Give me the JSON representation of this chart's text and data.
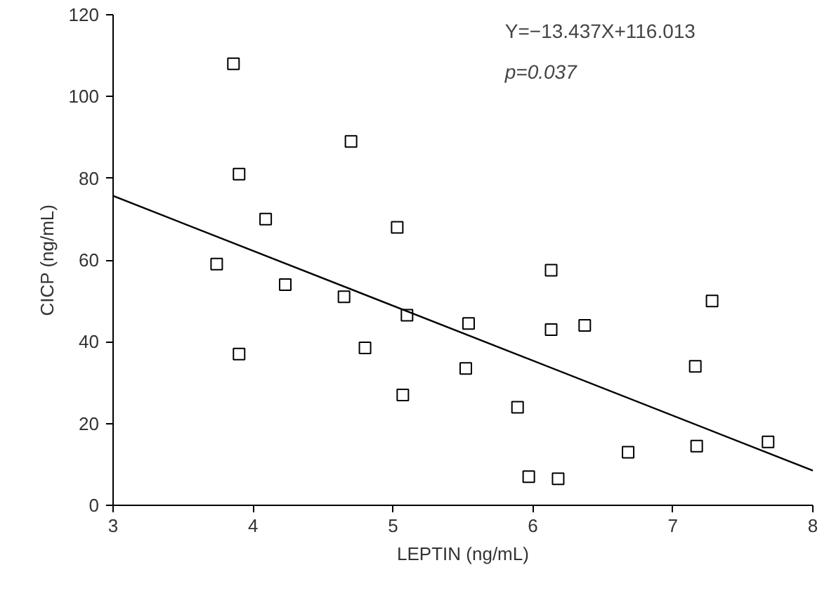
{
  "chart_data": {
    "type": "scatter",
    "xlabel": "LEPTIN (ng/mL)",
    "ylabel": "CICP (ng/mL)",
    "xlim": [
      3,
      8
    ],
    "xticks": [
      3,
      4,
      5,
      6,
      7,
      8
    ],
    "ylim": [
      0,
      120
    ],
    "yticks": [
      0,
      20,
      40,
      60,
      80,
      100,
      120
    ],
    "grid": false,
    "series": [
      {
        "color": "#000000",
        "marker": "square",
        "x": [
          3.86,
          3.9,
          4.09,
          3.74,
          4.23,
          3.9,
          4.7,
          4.65,
          4.8,
          5.03,
          5.1,
          5.07,
          5.54,
          5.52,
          5.89,
          5.97,
          6.13,
          6.13,
          6.37,
          6.18,
          6.68,
          7.28,
          7.16,
          7.17,
          7.68
        ],
        "values": [
          108,
          81,
          70,
          59,
          54,
          37,
          89,
          51,
          38.5,
          68,
          46.5,
          27,
          44.5,
          33.5,
          24,
          7,
          57.5,
          43,
          44,
          6.5,
          13,
          50,
          34,
          14.5,
          15.5
        ]
      },
      {
        "type": "line",
        "color": "#000000",
        "x": [
          3,
          8
        ],
        "values": [
          75.7,
          8.5
        ]
      }
    ],
    "annotations": [
      "Y=−13.437X+116.013",
      "p=0.037"
    ]
  }
}
